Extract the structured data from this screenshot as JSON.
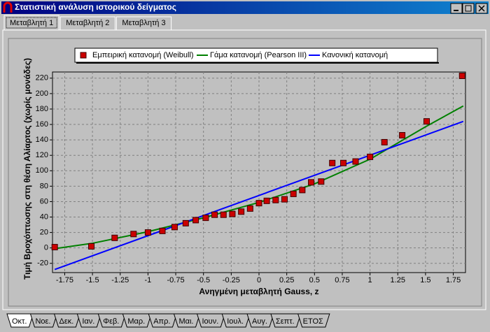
{
  "window": {
    "title": "Στατιστική ανάλυση ιστορικού δείγματος"
  },
  "tabs": [
    "Μεταβλητή 1",
    "Μεταβλητή 2",
    "Μεταβλητή 3"
  ],
  "bottom_tabs": [
    "Οκτ.",
    "Νοε.",
    "Δεκ.",
    "Ιαν.",
    "Φεβ.",
    "Μαρ.",
    "Απρ.",
    "Μαι.",
    "Ιουν.",
    "Ιουλ.",
    "Αυγ.",
    "Σεπτ.",
    "ΕΤΟΣ"
  ],
  "chart_data": {
    "type": "scatter",
    "xlabel": "Ανηγμένη μεταβλητή Gauss, z",
    "ylabel": "Τιμή Βροχόπτωσης στη θέση Αλίαρτος (χωρίς μονάδες)",
    "xlim": [
      -1.86,
      1.86
    ],
    "ylim": [
      -32,
      228
    ],
    "xticks": [
      -1.75,
      -1.5,
      -1.25,
      -1,
      -0.75,
      -0.5,
      -0.25,
      0,
      0.25,
      0.5,
      0.75,
      1,
      1.25,
      1.5,
      1.75
    ],
    "yticks": [
      -20,
      0,
      20,
      40,
      60,
      80,
      100,
      120,
      140,
      160,
      180,
      200,
      220
    ],
    "grid": true,
    "series": [
      {
        "name": "Εμπειρική κατανομή (Weibull)",
        "type": "scatter",
        "color": "#cc0000",
        "x": [
          -1.84,
          -1.51,
          -1.3,
          -1.13,
          -1.0,
          -0.87,
          -0.76,
          -0.66,
          -0.57,
          -0.48,
          -0.4,
          -0.32,
          -0.24,
          -0.16,
          -0.08,
          0.0,
          0.07,
          0.15,
          0.23,
          0.31,
          0.39,
          0.47,
          0.56,
          0.66,
          0.76,
          0.87,
          1.0,
          1.13,
          1.29,
          1.51,
          1.83
        ],
        "values": [
          1,
          2,
          13,
          18,
          20,
          22,
          27,
          32,
          36,
          39,
          43,
          43,
          44,
          47,
          51,
          58,
          61,
          62,
          63,
          70,
          75,
          85,
          86,
          110,
          110,
          112,
          118,
          137,
          146,
          164,
          223
        ]
      },
      {
        "name": "Γάμα κατανομή (Pearson III)",
        "type": "line",
        "color": "#008000",
        "x": [
          -1.84,
          -1.5,
          -1,
          -0.5,
          0,
          0.5,
          1,
          1.5,
          1.84
        ],
        "values": [
          -1,
          6,
          21,
          39,
          59,
          83,
          115,
          157,
          184
        ]
      },
      {
        "name": "Κανονική κατανομή",
        "type": "line",
        "color": "#0000ff",
        "x": [
          -1.84,
          1.84
        ],
        "values": [
          -28,
          164
        ]
      }
    ]
  }
}
